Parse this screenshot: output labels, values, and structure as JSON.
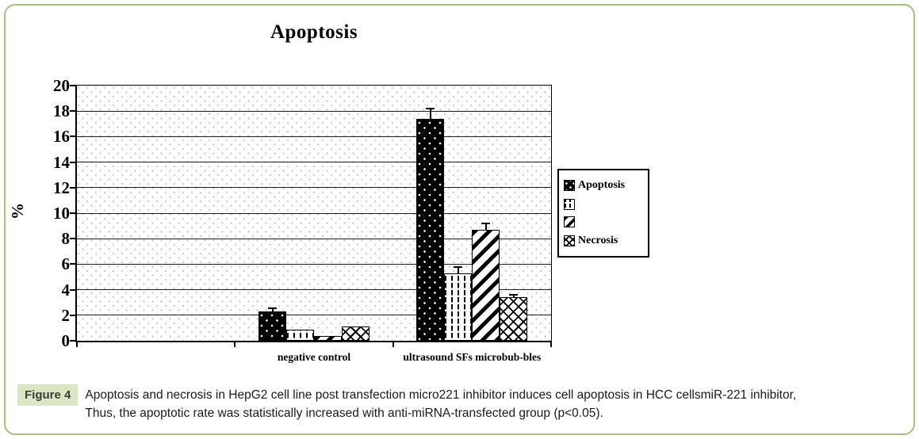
{
  "frame": {
    "border_color": "#a3c183"
  },
  "chart_data": {
    "type": "bar",
    "title": "Apoptosis",
    "ylabel": "%",
    "ylim": [
      0,
      20
    ],
    "ytick_step": 2,
    "grid": true,
    "legend_position": "right",
    "categories": [
      "negative control",
      "ultrasound SFs microbub-bles"
    ],
    "series": [
      {
        "name": "Apoptosis",
        "pattern": "black-white-dots",
        "values": [
          2.3,
          17.4
        ],
        "errors": [
          0.25,
          0.8
        ]
      },
      {
        "name": "",
        "pattern": "vertical-dashed-lines",
        "values": [
          0.9,
          5.3
        ],
        "errors": [
          0,
          0.45
        ]
      },
      {
        "name": "",
        "pattern": "diagonal-stripes",
        "values": [
          0.4,
          8.7
        ],
        "errors": [
          0,
          0.5
        ]
      },
      {
        "name": "Necrosis",
        "pattern": "crosshatch",
        "values": [
          1.1,
          3.4
        ],
        "errors": [
          0,
          0.2
        ]
      }
    ]
  },
  "figure": {
    "label": "Figure 4",
    "label_bg": "#dbe7c4",
    "caption_line1": "Apoptosis and necrosis in HepG2 cell line post transfection micro221 inhibitor induces cell apoptosis in HCC cellsmiR-221 inhibitor,",
    "caption_line2": "Thus, the apoptotic rate was statistically increased with anti-miRNA-transfected group (p<0.05)."
  }
}
